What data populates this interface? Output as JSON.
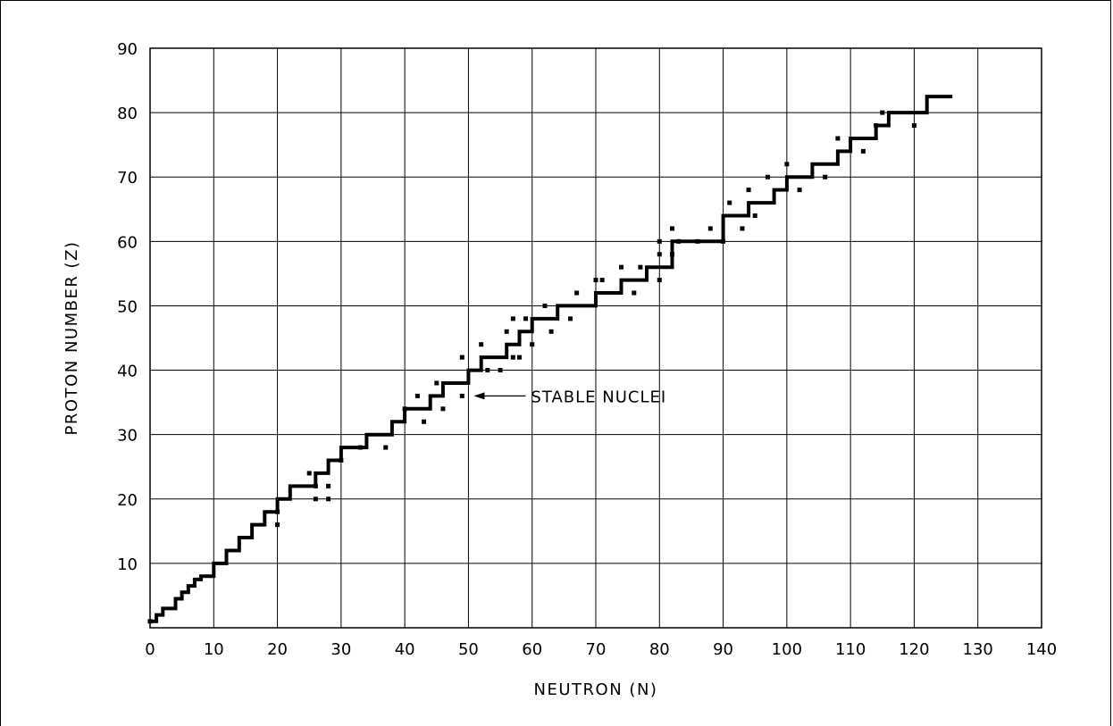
{
  "chart_data": {
    "type": "scatter",
    "title": "",
    "xlabel": "NEUTRON (N)",
    "ylabel": "PROTON NUMBER (Z)",
    "xlim": [
      0,
      140
    ],
    "ylim": [
      0,
      90
    ],
    "xticks": [
      0,
      10,
      20,
      30,
      40,
      50,
      60,
      70,
      80,
      90,
      100,
      110,
      120,
      130,
      140
    ],
    "yticks": [
      10,
      20,
      30,
      40,
      50,
      60,
      70,
      80,
      90
    ],
    "grid": true,
    "annotation": {
      "text": "STABLE NUCLEI",
      "x": 50,
      "y": 36
    },
    "series": [
      {
        "style": "thick stepped band of stable isotopes",
        "x": [
          0,
          1,
          1,
          2,
          2,
          4,
          4,
          5,
          5,
          6,
          6,
          7,
          7,
          8,
          8,
          10,
          10,
          12,
          12,
          14,
          14,
          16,
          16,
          18,
          18,
          20,
          20,
          22,
          22,
          24,
          24,
          26,
          26,
          28,
          28,
          30,
          30,
          32,
          32,
          34,
          34,
          36,
          36,
          38,
          38,
          40,
          40,
          42,
          42,
          44,
          44,
          46,
          46,
          48,
          48,
          50,
          50,
          52,
          52,
          56,
          56,
          58,
          58,
          60,
          60,
          62,
          62,
          64,
          64,
          70,
          70,
          72,
          72,
          74,
          74,
          78,
          78,
          80,
          80,
          82,
          82,
          90,
          90,
          94,
          94,
          98,
          98,
          100,
          100,
          104,
          104,
          108,
          108,
          110,
          110,
          114,
          114,
          116,
          116,
          118,
          118,
          122,
          122,
          126
        ],
        "y": [
          1,
          1,
          2,
          2,
          3,
          3,
          4.5,
          4.5,
          5.5,
          5.5,
          6.5,
          6.5,
          7.5,
          7.5,
          8,
          8,
          10,
          10,
          12,
          12,
          14,
          14,
          16,
          16,
          18,
          18,
          20,
          20,
          22,
          22,
          22,
          22,
          24,
          24,
          26,
          26,
          28,
          28,
          28,
          28,
          30,
          30,
          30,
          30,
          32,
          32,
          34,
          34,
          34,
          34,
          36,
          36,
          38,
          38,
          38,
          38,
          40,
          40,
          42,
          42,
          44,
          44,
          46,
          46,
          48,
          48,
          48,
          48,
          50,
          50,
          52,
          52,
          52,
          52,
          54,
          54,
          56,
          56,
          56,
          56,
          60,
          60,
          64,
          64,
          66,
          66,
          68,
          68,
          70,
          70,
          72,
          72,
          74,
          74,
          76,
          76,
          78,
          78,
          80,
          80,
          80,
          80,
          82.5,
          82.5
        ]
      },
      {
        "style": "scattered stable nuclei points",
        "x": [
          0,
          20,
          20,
          25,
          26,
          26,
          28,
          28,
          30,
          33,
          37,
          40,
          42,
          43,
          45,
          46,
          49,
          49,
          52,
          53,
          55,
          56,
          57,
          57,
          58,
          59,
          60,
          62,
          63,
          66,
          67,
          70,
          71,
          74,
          76,
          77,
          80,
          80,
          80,
          82,
          82,
          83,
          86,
          88,
          90,
          91,
          93,
          94,
          95,
          97,
          100,
          102,
          106,
          108,
          112,
          114,
          115,
          120
        ],
        "y": [
          1,
          16,
          18,
          24,
          20,
          22,
          20,
          22,
          26,
          28,
          28,
          34,
          36,
          32,
          38,
          34,
          36,
          42,
          44,
          40,
          40,
          46,
          48,
          42,
          42,
          48,
          44,
          50,
          46,
          48,
          52,
          54,
          54,
          56,
          52,
          56,
          54,
          58,
          60,
          58,
          62,
          60,
          60,
          62,
          60,
          66,
          62,
          68,
          64,
          70,
          72,
          68,
          70,
          76,
          74,
          78,
          80,
          78
        ]
      }
    ]
  }
}
